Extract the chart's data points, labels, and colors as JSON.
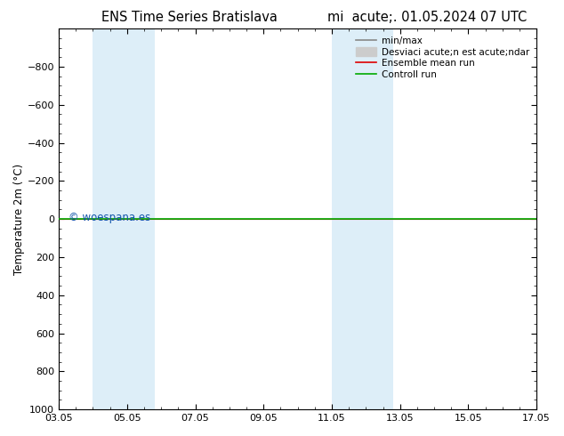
{
  "title_left": "ENS Time Series Bratislava",
  "title_right": "mi  acute;. 01.05.2024 07 UTC",
  "ylabel": "Temperature 2m (°C)",
  "ylim_top": -1000,
  "ylim_bottom": 1000,
  "yticks": [
    -800,
    -600,
    -400,
    -200,
    0,
    200,
    400,
    600,
    800,
    1000
  ],
  "x_min": 3,
  "x_max": 17,
  "xtick_labels": [
    "03.05",
    "05.05",
    "07.05",
    "09.05",
    "11.05",
    "13.05",
    "15.05",
    "17.05"
  ],
  "xtick_positions": [
    3,
    5,
    7,
    9,
    11,
    13,
    15,
    17
  ],
  "shaded_regions": [
    {
      "x_start": 4.0,
      "x_end": 5.8,
      "color": "#ddeef8",
      "alpha": 1.0
    },
    {
      "x_start": 11.0,
      "x_end": 12.8,
      "color": "#ddeef8",
      "alpha": 1.0
    }
  ],
  "control_run_color": "#00aa00",
  "ensemble_mean_color": "#dd0000",
  "minmax_color": "#888888",
  "std_fill_color": "#cccccc",
  "watermark": "© woespana.es",
  "watermark_color": "#1155aa",
  "legend_label_minmax": "min/max",
  "legend_label_std": "Desviaci acute;n est acute;ndar",
  "legend_label_ensemble": "Ensemble mean run",
  "legend_label_control": "Controll run",
  "background_color": "#ffffff",
  "line_y": 0
}
